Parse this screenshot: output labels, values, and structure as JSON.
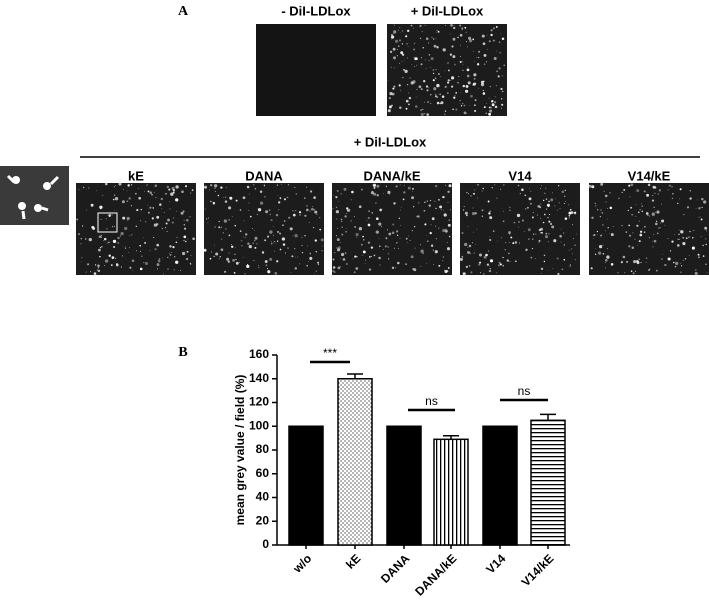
{
  "figure": {
    "panel_a_label": "A",
    "panel_b_label": "B",
    "top_images": [
      "- DiI-LDLox",
      "+ DiI-LDLox"
    ],
    "group_label": "+ DiI-LDLox",
    "group_images": [
      "kE",
      "DANA",
      "DANA/kE",
      "V14",
      "V14/kE"
    ]
  },
  "chart_data": {
    "type": "bar",
    "ylabel": "mean grey value / field (%)",
    "categories": [
      "w/o",
      "kE",
      "DANA",
      "DANA/kE",
      "V14",
      "V14/kE"
    ],
    "values": [
      100,
      140,
      100,
      89,
      100,
      105
    ],
    "errors": [
      0,
      4,
      0,
      3,
      0,
      5
    ],
    "fills": [
      "solid",
      "dots",
      "solid",
      "vlines",
      "solid",
      "hlines"
    ],
    "color": "#000000",
    "ylim": [
      0,
      160
    ],
    "yticks": [
      0,
      20,
      40,
      60,
      80,
      100,
      120,
      140,
      160
    ],
    "annotations": [
      "***",
      "ns",
      "ns"
    ]
  }
}
